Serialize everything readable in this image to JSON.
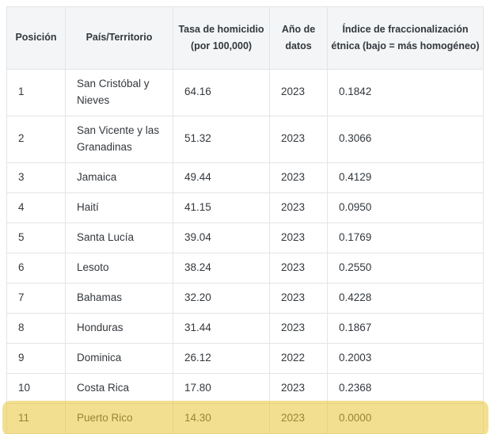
{
  "table": {
    "columns": [
      {
        "key": "posicion",
        "label": "Posición"
      },
      {
        "key": "pais",
        "label": "País/Territorio"
      },
      {
        "key": "tasa",
        "label": "Tasa de homicidio (por 100,000)"
      },
      {
        "key": "ano",
        "label": "Año de datos"
      },
      {
        "key": "indice",
        "label": "Índice de fraccionalización étnica (bajo = más homogéneo)"
      }
    ],
    "rows": [
      {
        "posicion": "1",
        "pais": "San Cristóbal y Nieves",
        "tasa": "64.16",
        "ano": "2023",
        "indice": "0.1842",
        "highlighted": false
      },
      {
        "posicion": "2",
        "pais": "San Vicente y las Granadinas",
        "tasa": "51.32",
        "ano": "2023",
        "indice": "0.3066",
        "highlighted": false
      },
      {
        "posicion": "3",
        "pais": "Jamaica",
        "tasa": "49.44",
        "ano": "2023",
        "indice": "0.4129",
        "highlighted": false
      },
      {
        "posicion": "4",
        "pais": "Haití",
        "tasa": "41.15",
        "ano": "2023",
        "indice": "0.0950",
        "highlighted": false
      },
      {
        "posicion": "5",
        "pais": "Santa Lucía",
        "tasa": "39.04",
        "ano": "2023",
        "indice": "0.1769",
        "highlighted": false
      },
      {
        "posicion": "6",
        "pais": "Lesoto",
        "tasa": "38.24",
        "ano": "2023",
        "indice": "0.2550",
        "highlighted": false
      },
      {
        "posicion": "7",
        "pais": "Bahamas",
        "tasa": "32.20",
        "ano": "2023",
        "indice": "0.4228",
        "highlighted": false
      },
      {
        "posicion": "8",
        "pais": "Honduras",
        "tasa": "31.44",
        "ano": "2023",
        "indice": "0.1867",
        "highlighted": false
      },
      {
        "posicion": "9",
        "pais": "Dominica",
        "tasa": "26.12",
        "ano": "2022",
        "indice": "0.2003",
        "highlighted": false
      },
      {
        "posicion": "10",
        "pais": "Costa Rica",
        "tasa": "17.80",
        "ano": "2023",
        "indice": "0.2368",
        "highlighted": false
      },
      {
        "posicion": "11",
        "pais": "Puerto Rico",
        "tasa": "14.30",
        "ano": "2023",
        "indice": "0.0000",
        "highlighted": true
      }
    ],
    "colors": {
      "highlight": "#f2df8f",
      "header_background": "#f3f5f6",
      "border": "#e2e4e6",
      "text": "#33383d"
    }
  }
}
